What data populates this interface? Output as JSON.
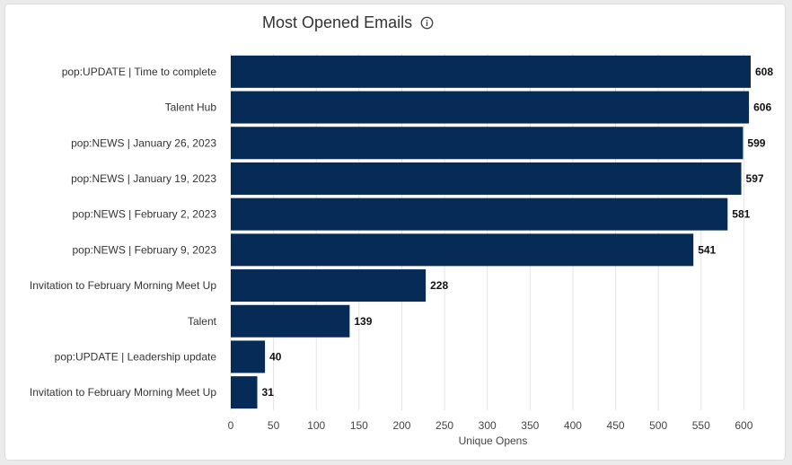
{
  "header": {
    "title": "Most Opened Emails",
    "info_icon": "info-circle-icon"
  },
  "colors": {
    "bar": "#062b56",
    "grid": "#e3e3e3"
  },
  "chart_data": {
    "type": "bar",
    "orientation": "horizontal",
    "title": "Most Opened Emails",
    "xlabel": "Unique Opens",
    "ylabel": "",
    "xlim": [
      0,
      608
    ],
    "xticks": [
      0,
      50,
      100,
      150,
      200,
      250,
      300,
      350,
      400,
      450,
      500,
      550,
      600
    ],
    "categories": [
      "pop:UPDATE | Time to complete",
      "Talent Hub",
      "pop:NEWS | January 26, 2023",
      "pop:NEWS | January 19, 2023",
      "pop:NEWS | February 2, 2023",
      "pop:NEWS | February 9, 2023",
      "Invitation to February Morning Meet Up",
      "Talent",
      "pop:UPDATE | Leadership update",
      "Invitation to February Morning Meet Up"
    ],
    "values": [
      608,
      606,
      599,
      597,
      581,
      541,
      228,
      139,
      40,
      31
    ]
  }
}
